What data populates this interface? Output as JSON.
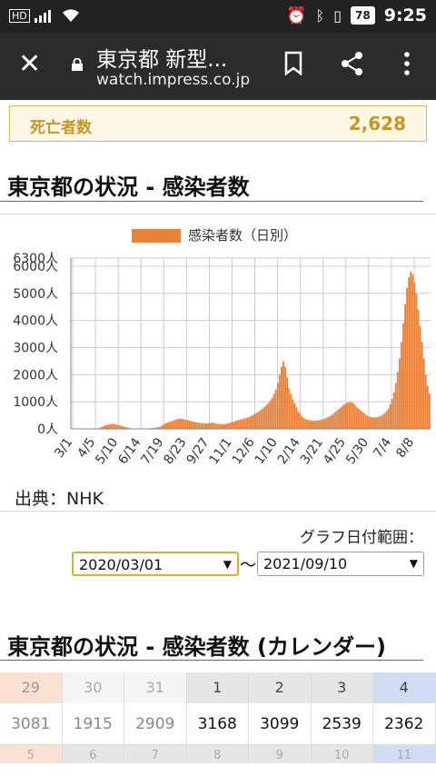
{
  "status": {
    "time": "9:25",
    "battery": "78",
    "hd": "HD"
  },
  "browser": {
    "title": "東京都 新型...",
    "url": "watch.impress.co.jp"
  },
  "deaths": {
    "label": "死亡者数",
    "value": "2,628"
  },
  "section1": {
    "title": "東京都の状況 - 感染者数"
  },
  "chart_data": {
    "type": "bar",
    "legend": "感染者数（日別）",
    "y_ticks": [
      "0人",
      "1000人",
      "2000人",
      "3000人",
      "4000人",
      "5000人",
      "6000人",
      "6300人"
    ],
    "ylim": [
      0,
      6300
    ],
    "x_ticks": [
      "3/1",
      "4/5",
      "5/10",
      "6/14",
      "7/19",
      "8/23",
      "9/27",
      "11/1",
      "12/6",
      "1/10",
      "2/14",
      "3/21",
      "4/25",
      "5/30",
      "7/4",
      "8/8"
    ],
    "color": "#e8823a",
    "series": [
      {
        "values": [
          0,
          0,
          0,
          0,
          0,
          0,
          0,
          0,
          0,
          0,
          2,
          3,
          5,
          10,
          15,
          40,
          70,
          100,
          130,
          150,
          170,
          180,
          190,
          170,
          150,
          140,
          120,
          100,
          80,
          60,
          40,
          30,
          20,
          15,
          15,
          10,
          8,
          8,
          10,
          12,
          15,
          20,
          25,
          30,
          40,
          50,
          60,
          80,
          110,
          150,
          200,
          230,
          260,
          280,
          300,
          330,
          350,
          370,
          380,
          370,
          350,
          330,
          320,
          300,
          280,
          260,
          250,
          240,
          230,
          220,
          210,
          200,
          200,
          210,
          220,
          230,
          220,
          200,
          190,
          180,
          170,
          170,
          180,
          200,
          220,
          240,
          260,
          280,
          300,
          320,
          340,
          360,
          380,
          400,
          420,
          450,
          480,
          520,
          560,
          600,
          650,
          700,
          760,
          820,
          880,
          950,
          1050,
          1150,
          1300,
          1450,
          1700,
          2000,
          2300,
          2500,
          2300,
          1900,
          1500,
          1300,
          1100,
          950,
          800,
          650,
          550,
          450,
          400,
          350,
          330,
          320,
          310,
          300,
          300,
          310,
          320,
          330,
          350,
          370,
          400,
          440,
          480,
          520,
          580,
          640,
          700,
          760,
          820,
          880,
          920,
          960,
          980,
          1000,
          960,
          900,
          820,
          760,
          700,
          640,
          580,
          520,
          480,
          450,
          430,
          420,
          420,
          430,
          450,
          480,
          520,
          580,
          650,
          750,
          900,
          1100,
          1350,
          1700,
          2100,
          2600,
          3200,
          3900,
          4600,
          5200,
          5600,
          5800,
          5700,
          5400,
          5000,
          4400,
          3800,
          3200,
          2600,
          2000,
          1600,
          1300
        ]
      }
    ]
  },
  "source": "出典：NHK",
  "range": {
    "label": "グラフ日付範囲：",
    "from": "2020/03/01",
    "to": "2021/09/10"
  },
  "section2": {
    "title": "東京都の状況 - 感染者数 (カレンダー)"
  },
  "calendar": {
    "days": [
      "29",
      "30",
      "31",
      "1",
      "2",
      "3",
      "4"
    ],
    "values": [
      "3081",
      "1915",
      "2909",
      "3168",
      "3099",
      "2539",
      "2362"
    ],
    "next_days": [
      "5",
      "6",
      "7",
      "8",
      "9",
      "10",
      "11"
    ]
  }
}
